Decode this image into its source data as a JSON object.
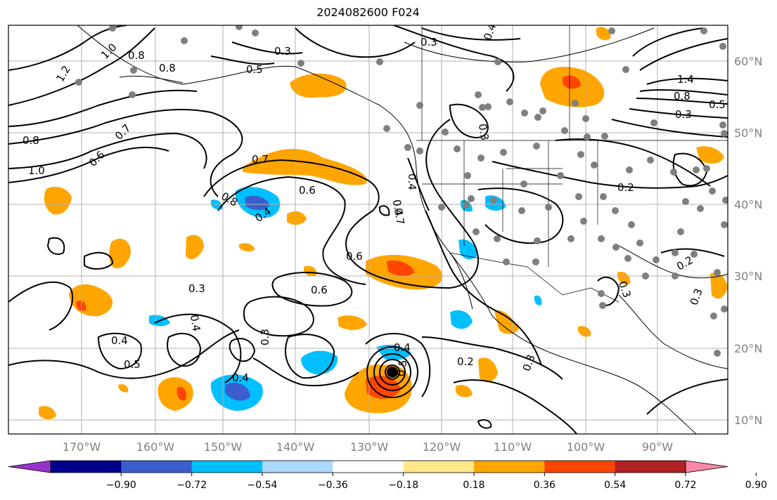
{
  "title": "2024082600 F024",
  "latitude_labels": [
    "60°N",
    "50°N",
    "40°N",
    "30°N",
    "20°N",
    "10°N"
  ],
  "longitude_labels": [
    "170°W",
    "160°W",
    "150°W",
    "140°W",
    "130°W",
    "120°W",
    "110°W",
    "100°W",
    "90°W"
  ],
  "colorbar": {
    "colors": [
      "#9932cc",
      "#00008b",
      "#3a5fcd",
      "#00bfff",
      "#add8ff",
      "#ffffff",
      "#ffe88a",
      "#ffa500",
      "#ff4500",
      "#b22222",
      "#ff88aa"
    ],
    "labels": [
      "−0.90",
      "−0.72",
      "−0.54",
      "−0.36",
      "−0.18",
      "0.18",
      "0.36",
      "0.54",
      "0.72",
      "0.90"
    ]
  },
  "contour_labels": [
    "1.2",
    "1.0",
    "0.8",
    "0.8",
    "0.3",
    "0.5",
    "0.4",
    "0.3",
    "1.4",
    "0.8",
    "0.5",
    "0.3",
    "0.8",
    "0.7",
    "0.6",
    "1.0",
    "0.7",
    "0.6",
    "0.8",
    "0.4",
    "0.4",
    "0.2",
    "0.2",
    "0.4",
    "0.6",
    "0.7",
    "0.6",
    "0.3",
    "0.4",
    "0.4",
    "0.5",
    "0.3",
    "0.4",
    "0.4",
    "0.5",
    "0.2",
    "0.3",
    "0.3",
    "0.3",
    "0.3"
  ]
}
